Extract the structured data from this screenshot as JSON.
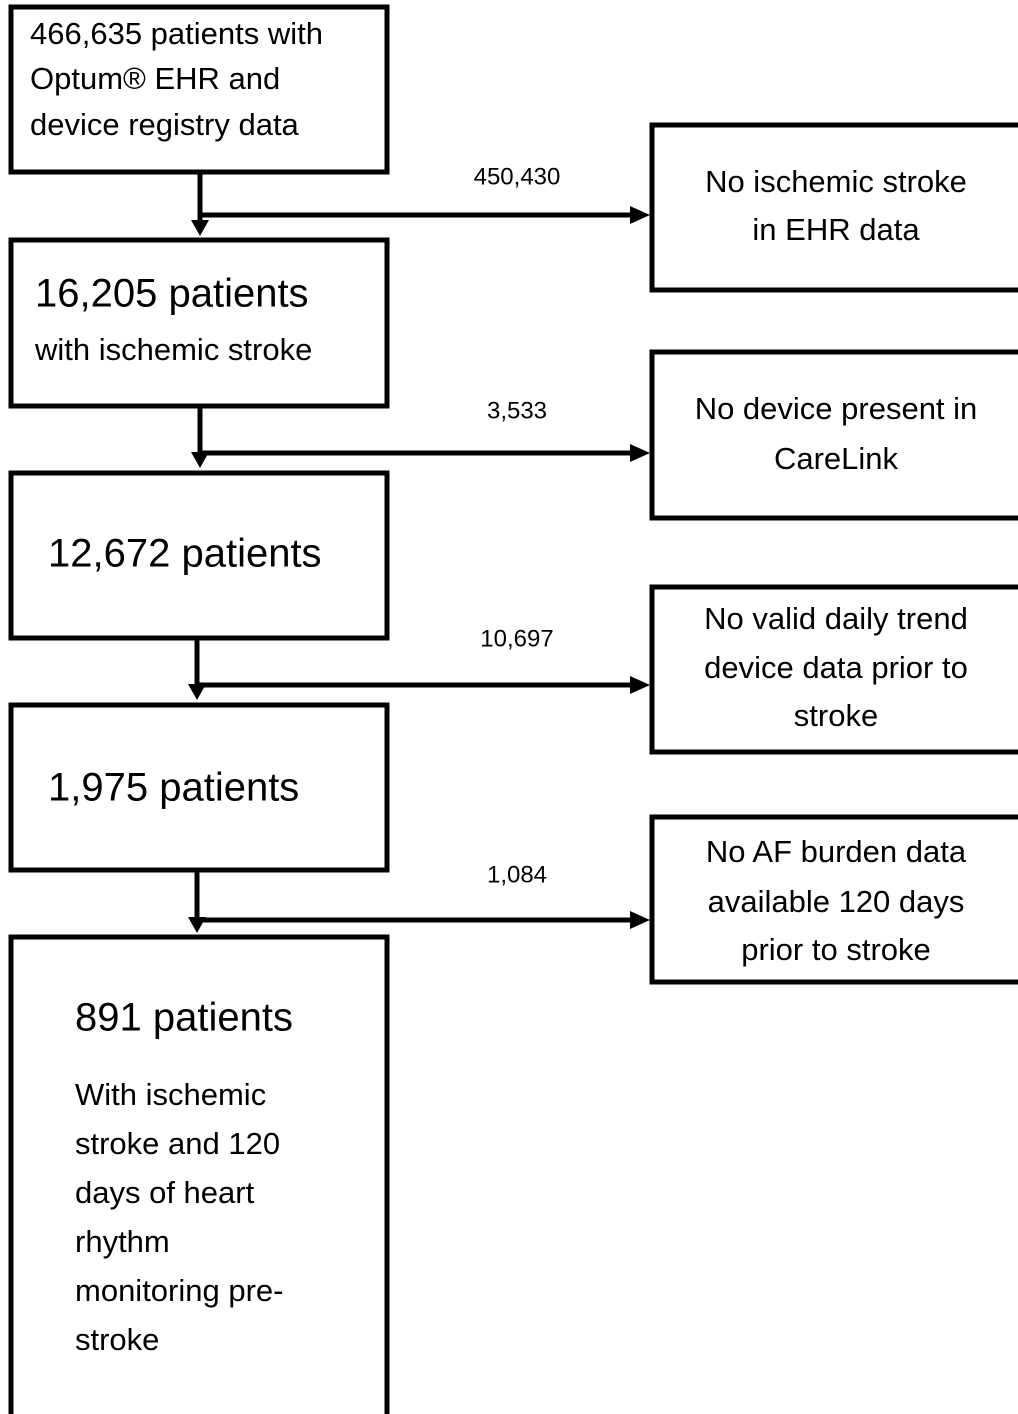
{
  "boxes": [
    {
      "lines": [
        "466,635 patients with",
        "Optum® EHR and",
        "device registry data"
      ]
    },
    {
      "heading": "16,205 patients",
      "lines": [
        "with ischemic stroke"
      ]
    },
    {
      "heading": "12,672 patients"
    },
    {
      "heading": "1,975 patients"
    },
    {
      "heading": "891 patients",
      "lines": [
        "With ischemic",
        "stroke and 120",
        "days of heart",
        "rhythm",
        "monitoring pre-",
        "stroke"
      ]
    }
  ],
  "exclusions": [
    {
      "count": "450,430",
      "lines": [
        "No ischemic stroke",
        "in EHR data"
      ]
    },
    {
      "count": "3,533",
      "lines": [
        "No device present in",
        "CareLink"
      ]
    },
    {
      "count": "10,697",
      "lines": [
        "No valid daily trend",
        "device data prior to",
        "stroke"
      ]
    },
    {
      "count": "1,084",
      "lines": [
        "No AF burden data",
        "available 120 days",
        "prior to stroke"
      ]
    }
  ]
}
